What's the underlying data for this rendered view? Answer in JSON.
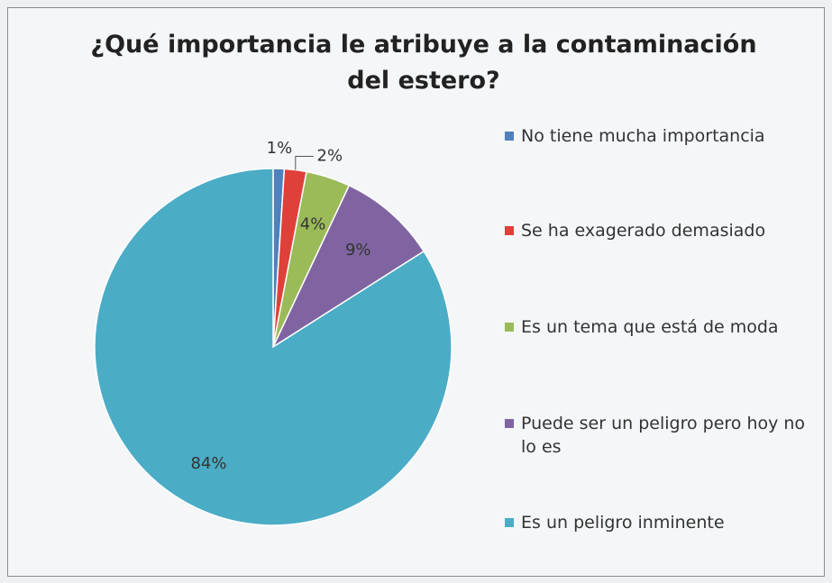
{
  "chart_data": {
    "type": "pie",
    "title": "¿Qué importancia le atribuye a la contaminación del estero?",
    "categories": [
      "No tiene mucha importancia",
      "Se ha exagerado demasiado",
      "Es un tema que está de moda",
      "Puede ser un peligro pero hoy no lo es",
      "Es un peligro inminente"
    ],
    "values": [
      1,
      2,
      4,
      9,
      84
    ],
    "value_labels": [
      "1%",
      "2%",
      "4%",
      "9%",
      "84%"
    ],
    "colors": [
      "#4f81bd",
      "#e0403a",
      "#9bbb59",
      "#8064a2",
      "#4bacc6"
    ],
    "legend": "right"
  }
}
